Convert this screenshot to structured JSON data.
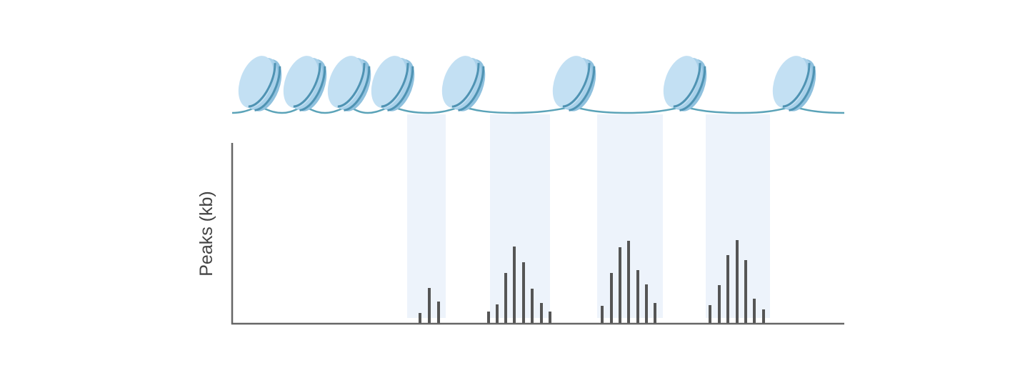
{
  "y_label": "Peaks (kb)"
}
